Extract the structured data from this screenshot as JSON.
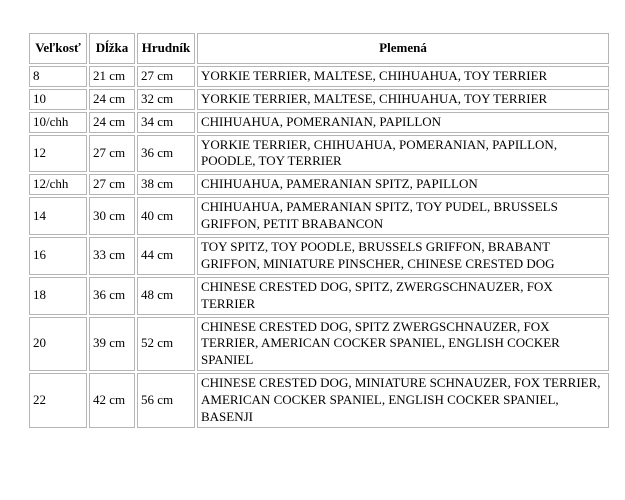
{
  "table": {
    "columns": {
      "size": "Veľkosť",
      "length": "Dĺžka",
      "chest": "Hrudník",
      "breeds": "Plemená"
    },
    "rows": [
      {
        "size": "8",
        "length": "21 cm",
        "chest": "27 cm",
        "breeds": "YORKIE TERRIER, MALTESE, CHIHUAHUA, TOY TERRIER"
      },
      {
        "size": "10",
        "length": "24 cm",
        "chest": "32 cm",
        "breeds": "YORKIE TERRIER, MALTESE, CHIHUAHUA, TOY TERRIER"
      },
      {
        "size": "10/chh",
        "length": "24 cm",
        "chest": "34 cm",
        "breeds": "CHIHUAHUA, POMERANIAN, PAPILLON"
      },
      {
        "size": "12",
        "length": "27 cm",
        "chest": "36 cm",
        "breeds": "YORKIE TERRIER, CHIHUAHUA, POMERANIAN, PAPILLON, POODLE, TOY TERRIER"
      },
      {
        "size": "12/chh",
        "length": "27 cm",
        "chest": "38 cm",
        "breeds": "CHIHUAHUA, PAMERANIAN SPITZ, PAPILLON"
      },
      {
        "size": "14",
        "length": "30 cm",
        "chest": "40 cm",
        "breeds": "CHIHUAHUA, PAMERANIAN SPITZ, TOY PUDEL, BRUSSELS GRIFFON, PETIT BRABANCON"
      },
      {
        "size": "16",
        "length": "33 cm",
        "chest": "44 cm",
        "breeds": "TOY SPITZ, TOY POODLE, BRUSSELS GRIFFON, BRABANT GRIFFON, MINIATURE PINSCHER, CHINESE CRESTED DOG"
      },
      {
        "size": "18",
        "length": "36 cm",
        "chest": "48 cm",
        "breeds": "CHINESE CRESTED DOG, SPITZ, ZWERGSCHNAUZER, FOX TERRIER"
      },
      {
        "size": "20",
        "length": "39 cm",
        "chest": "52 cm",
        "breeds": "CHINESE CRESTED DOG, SPITZ ZWERGSCHNAUZER, FOX TERRIER, AMERICAN COCKER SPANIEL, ENGLISH COCKER SPANIEL"
      },
      {
        "size": "22",
        "length": "42 cm",
        "chest": "56 cm",
        "breeds": "CHINESE CRESTED DOG, MINIATURE SCHNAUZER, FOX TERRIER, AMERICAN COCKER SPANIEL, ENGLISH COCKER SPANIEL, BASENJI"
      }
    ]
  },
  "colors": {
    "border": "#b5b5b5",
    "background": "#ffffff",
    "text": "#000000"
  }
}
